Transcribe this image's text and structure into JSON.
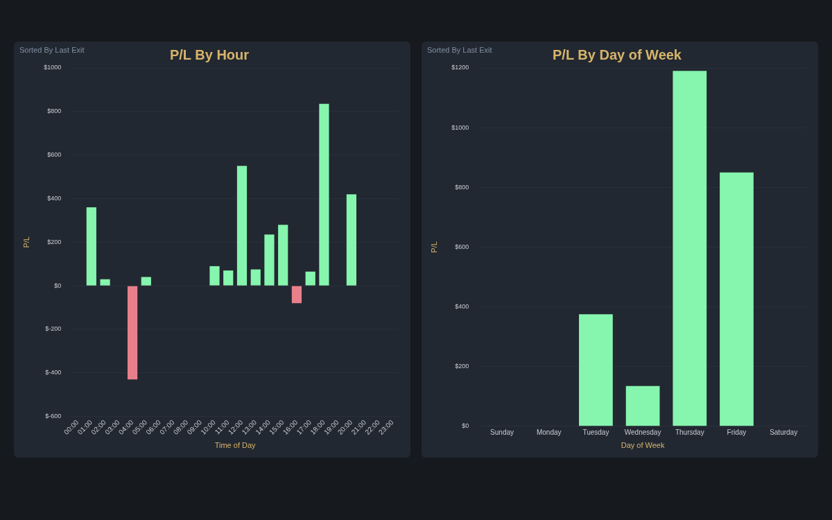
{
  "chart_data": [
    {
      "type": "bar",
      "title": "P/L By Hour",
      "subtitle": "Sorted By Last Exit",
      "xlabel": "Time of Day",
      "ylabel": "P/L",
      "categories": [
        "00:00",
        "01:00",
        "02:00",
        "03:00",
        "04:00",
        "05:00",
        "06:00",
        "07:00",
        "08:00",
        "09:00",
        "10:00",
        "11:00",
        "12:00",
        "13:00",
        "14:00",
        "15:00",
        "16:00",
        "17:00",
        "18:00",
        "19:00",
        "20:00",
        "21:00",
        "22:00",
        "23:00"
      ],
      "values": [
        null,
        360,
        30,
        null,
        -430,
        40,
        null,
        null,
        null,
        null,
        90,
        70,
        550,
        75,
        235,
        280,
        -80,
        65,
        835,
        null,
        420,
        null,
        null,
        null
      ],
      "colors": [
        "#86f5ae",
        "#86f5ae",
        "#86f5ae",
        "#86f5ae",
        "#e8808c",
        "#86f5ae",
        "#86f5ae",
        "#86f5ae",
        "#86f5ae",
        "#86f5ae",
        "#86f5ae",
        "#86f5ae",
        "#86f5ae",
        "#86f5ae",
        "#86f5ae",
        "#86f5ae",
        "#e8808c",
        "#86f5ae",
        "#86f5ae",
        "#86f5ae",
        "#86f5ae",
        "#86f5ae",
        "#86f5ae",
        "#86f5ae"
      ],
      "ylim": [
        -600,
        1000
      ],
      "yticks": [
        {
          "value": -600,
          "label": "$-600"
        },
        {
          "value": -400,
          "label": "$-400"
        },
        {
          "value": -200,
          "label": "$-200"
        },
        {
          "value": 0,
          "label": "$0"
        },
        {
          "value": 200,
          "label": "$200"
        },
        {
          "value": 400,
          "label": "$400"
        },
        {
          "value": 600,
          "label": "$600"
        },
        {
          "value": 800,
          "label": "$800"
        },
        {
          "value": 1000,
          "label": "$1000"
        }
      ],
      "grid": "y",
      "legend": false
    },
    {
      "type": "bar",
      "title": "P/L By Day of Week",
      "subtitle": "Sorted By Last Exit",
      "xlabel": "Day of Week",
      "ylabel": "P/L",
      "categories": [
        "Sunday",
        "Monday",
        "Tuesday",
        "Wednesday",
        "Thursday",
        "Friday",
        "Saturday"
      ],
      "values": [
        null,
        null,
        375,
        135,
        1190,
        850,
        null
      ],
      "colors": [
        "#86f5ae",
        "#86f5ae",
        "#86f5ae",
        "#86f5ae",
        "#86f5ae",
        "#86f5ae",
        "#86f5ae"
      ],
      "ylim": [
        0,
        1200
      ],
      "yticks": [
        {
          "value": 0,
          "label": "$0"
        },
        {
          "value": 200,
          "label": "$200"
        },
        {
          "value": 400,
          "label": "$400"
        },
        {
          "value": 600,
          "label": "$600"
        },
        {
          "value": 800,
          "label": "$800"
        },
        {
          "value": 1000,
          "label": "$1000"
        },
        {
          "value": 1200,
          "label": "$1200"
        }
      ],
      "grid": "y",
      "legend": false
    }
  ]
}
